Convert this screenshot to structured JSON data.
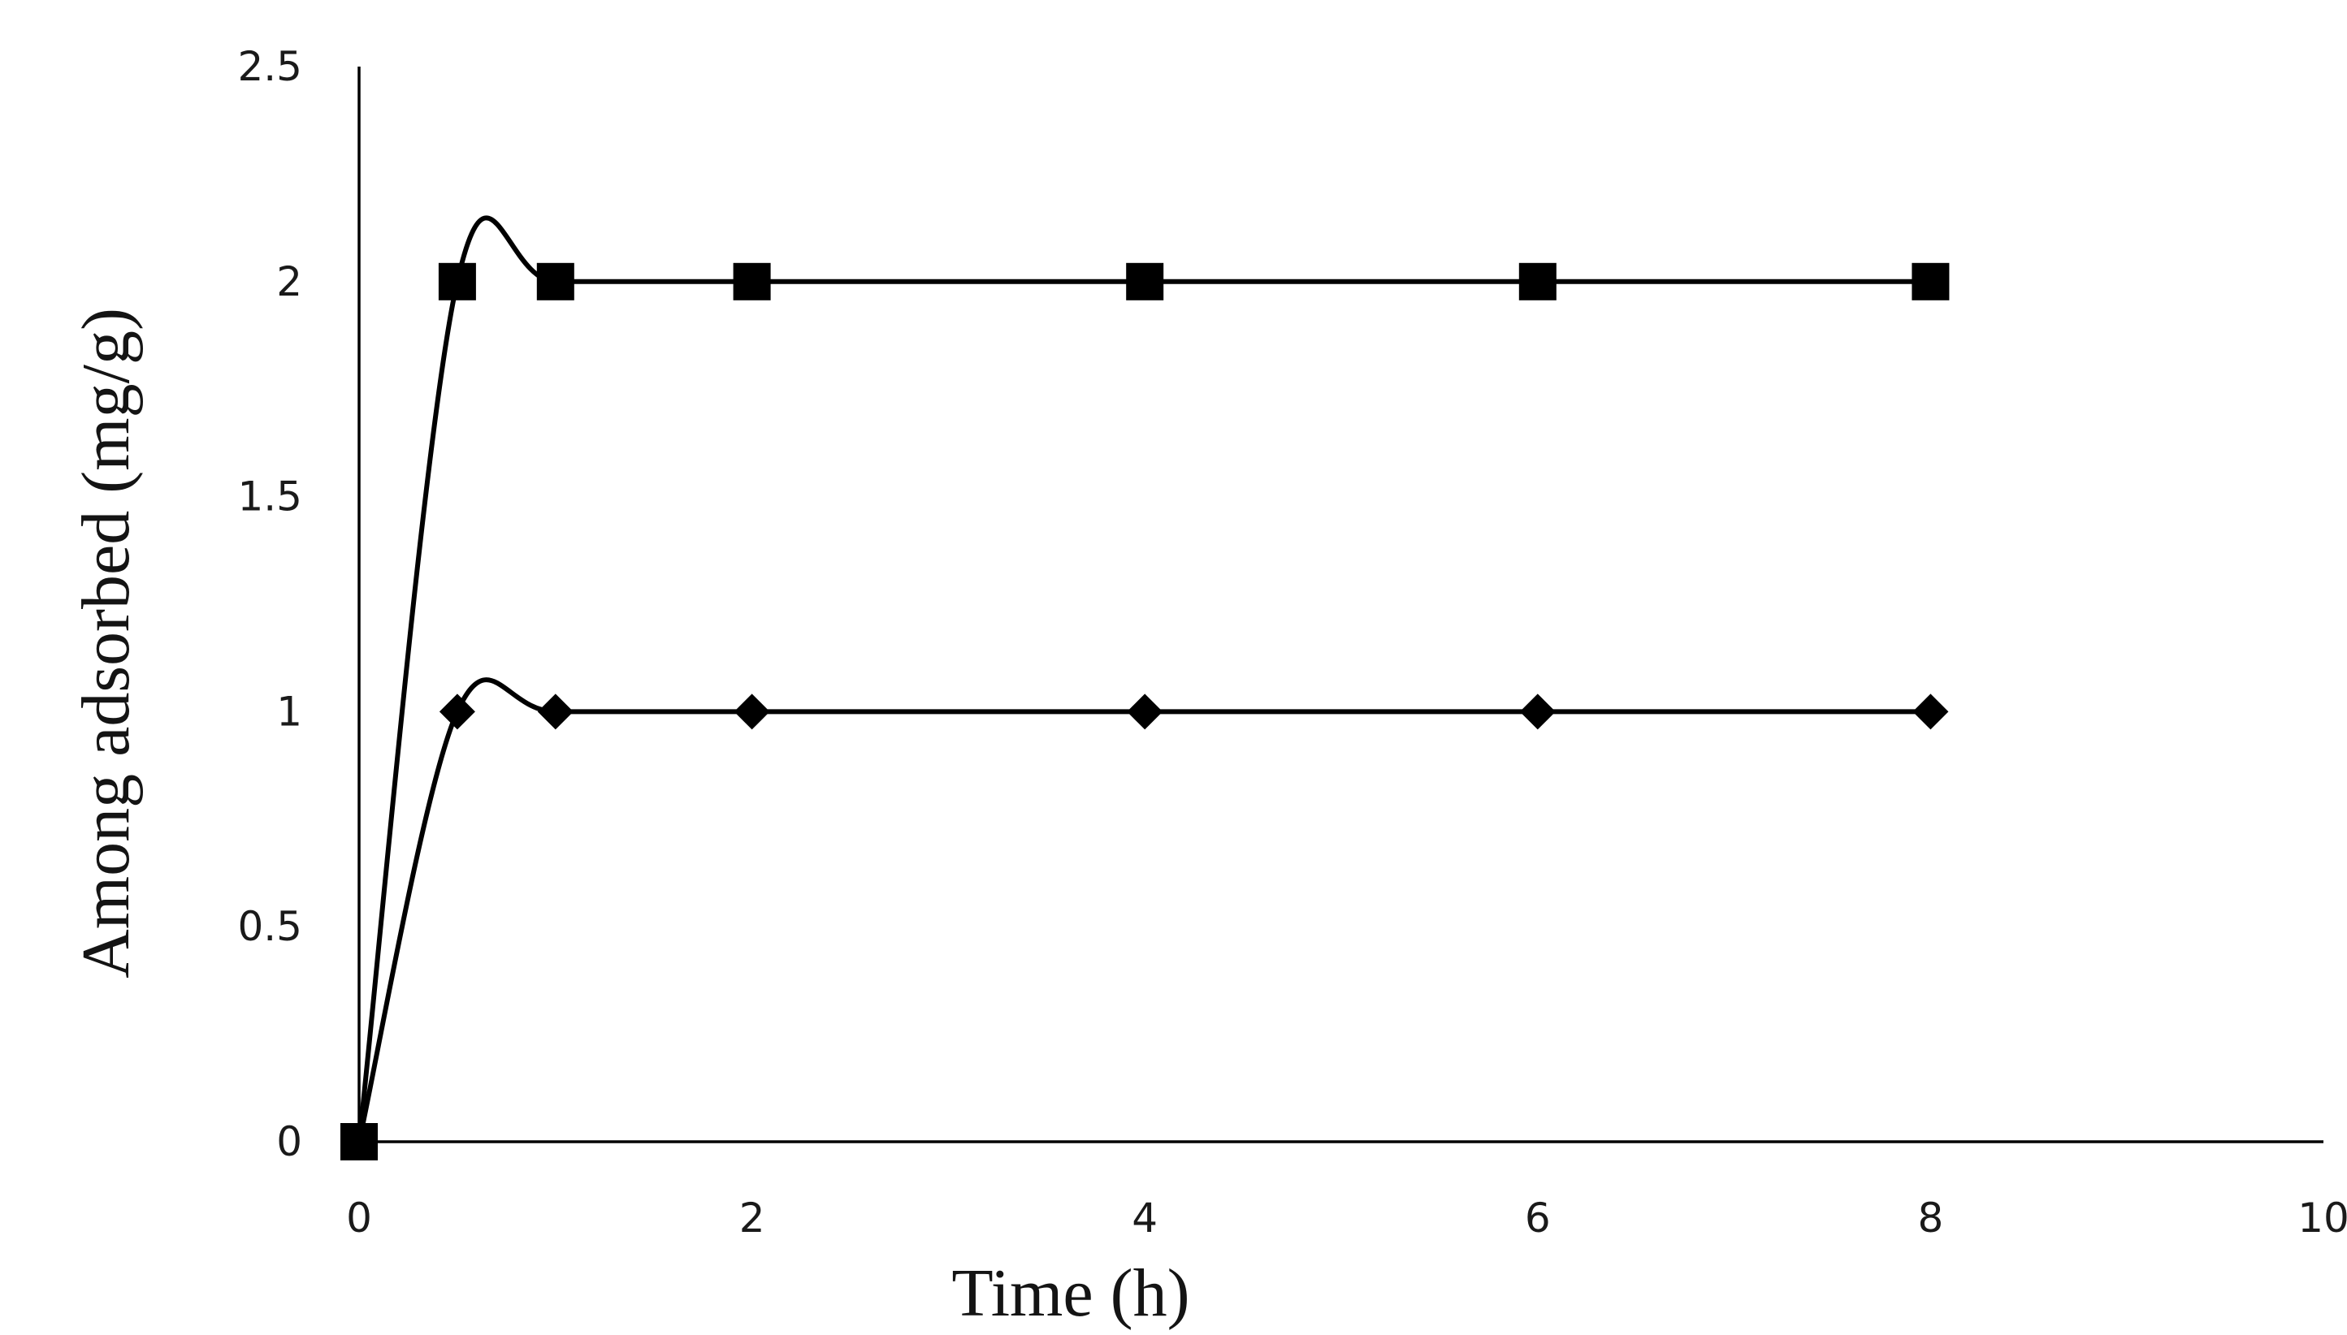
{
  "chart_data": {
    "type": "line",
    "xlabel": "Time (h)",
    "ylabel": "Among adsorbed (mg/g)",
    "xlim": [
      0,
      10
    ],
    "ylim": [
      0,
      2.5
    ],
    "x_ticks": [
      0,
      2,
      4,
      6,
      8,
      10
    ],
    "y_ticks": [
      0,
      0.5,
      1,
      1.5,
      2,
      2.5
    ],
    "x_tick_labels": [
      "0",
      "2",
      "4",
      "6",
      "8",
      "10"
    ],
    "y_tick_labels": [
      "0",
      "0.5",
      "1",
      "1.5",
      "2",
      "2.5"
    ],
    "grid": false,
    "legend": "none",
    "series": [
      {
        "marker": "square",
        "color": "#000000",
        "x": [
          0,
          0.5,
          1,
          2,
          4,
          6,
          8
        ],
        "y": [
          0,
          2,
          2,
          2,
          2,
          2,
          2
        ]
      },
      {
        "marker": "diamond",
        "color": "#000000",
        "x": [
          0,
          0.5,
          1,
          2,
          4,
          6,
          8
        ],
        "y": [
          0,
          1,
          1,
          1,
          1,
          1,
          1
        ]
      }
    ]
  }
}
